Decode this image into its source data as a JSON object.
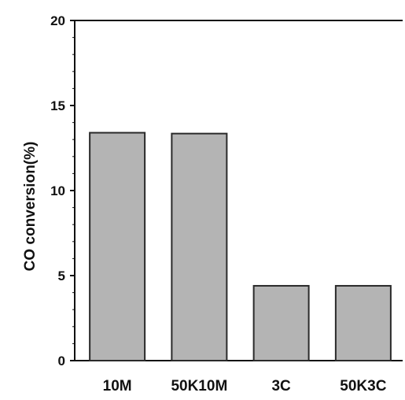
{
  "chart_data": {
    "type": "bar",
    "title": "",
    "xlabel": "",
    "ylabel": "CO conversion(%)",
    "categories": [
      "10M",
      "50K10M",
      "3C",
      "50K3C"
    ],
    "values": [
      13.4,
      13.35,
      4.4,
      4.4
    ],
    "ylim": [
      0,
      20
    ],
    "yticks": [
      0,
      5,
      10,
      15,
      20
    ],
    "ytick_labels": [
      "0",
      "5",
      "10",
      "15",
      "20"
    ],
    "grid": false,
    "legend": "none",
    "colors": {
      "bar_fill": "#b4b4b4",
      "bar_stroke": "#2a2a2a",
      "axis": "#111111",
      "background": "#ffffff"
    }
  }
}
